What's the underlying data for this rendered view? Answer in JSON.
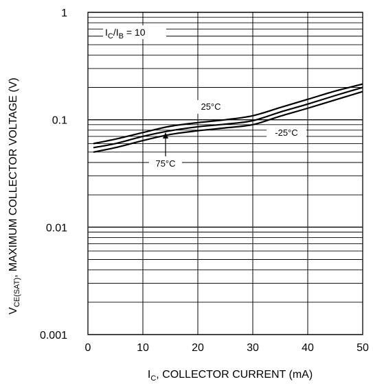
{
  "chart_data": {
    "type": "line",
    "x_label_main": "I",
    "x_label_sub": "C",
    "x_label_rest": ", COLLECTOR CURRENT (mA)",
    "y_label_main": "V",
    "y_label_sub": "CE(SAT)",
    "y_label_rest": ", MAXIMUM COLLECTOR VOLTAGE (V)",
    "x_scale": "linear",
    "y_scale": "log",
    "xlim": [
      0,
      50
    ],
    "ylim": [
      0.001,
      1
    ],
    "x_ticks": [
      "0",
      "10",
      "20",
      "30",
      "40",
      "50"
    ],
    "y_ticks": [
      "0.001",
      "0.01",
      "0.1",
      "1"
    ],
    "grid": true,
    "condition": {
      "a": "I",
      "a_sub": "C",
      "slash": "/I",
      "b_sub": "B",
      "rest": " = 10"
    },
    "series": [
      {
        "name": "25°C",
        "x": [
          1,
          5,
          10,
          15,
          20,
          25,
          30,
          35,
          40,
          45,
          50
        ],
        "values": [
          0.06,
          0.066,
          0.076,
          0.087,
          0.094,
          0.1,
          0.109,
          0.13,
          0.155,
          0.185,
          0.215
        ]
      },
      {
        "name": "-25°C",
        "x": [
          1,
          5,
          10,
          15,
          20,
          25,
          30,
          35,
          40,
          45,
          50
        ],
        "values": [
          0.055,
          0.06,
          0.07,
          0.079,
          0.086,
          0.091,
          0.098,
          0.118,
          0.14,
          0.168,
          0.2
        ]
      },
      {
        "name": "75°C",
        "x": [
          1,
          5,
          10,
          15,
          20,
          25,
          30,
          35,
          40,
          45,
          50
        ],
        "values": [
          0.05,
          0.055,
          0.064,
          0.073,
          0.079,
          0.084,
          0.09,
          0.108,
          0.128,
          0.153,
          0.183
        ]
      }
    ],
    "annotations": {
      "t25": "25°C",
      "tm25": "-25°C",
      "t75": "75°C"
    },
    "line_color": "#000000",
    "grid_color": "#000000"
  }
}
